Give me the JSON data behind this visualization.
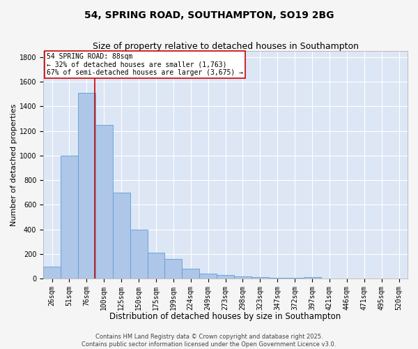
{
  "title_line1": "54, SPRING ROAD, SOUTHAMPTON, SO19 2BG",
  "title_line2": "Size of property relative to detached houses in Southampton",
  "xlabel": "Distribution of detached houses by size in Southampton",
  "ylabel": "Number of detached properties",
  "categories": [
    "26sqm",
    "51sqm",
    "76sqm",
    "100sqm",
    "125sqm",
    "150sqm",
    "175sqm",
    "199sqm",
    "224sqm",
    "249sqm",
    "273sqm",
    "298sqm",
    "323sqm",
    "347sqm",
    "372sqm",
    "397sqm",
    "421sqm",
    "446sqm",
    "471sqm",
    "495sqm",
    "520sqm"
  ],
  "values": [
    100,
    1000,
    1510,
    1250,
    700,
    400,
    210,
    160,
    80,
    40,
    30,
    20,
    12,
    8,
    5,
    10,
    0,
    0,
    0,
    0,
    0
  ],
  "bar_color": "#aec6e8",
  "bar_edge_color": "#5a9fd4",
  "background_color": "#dde6f5",
  "grid_color": "#ffffff",
  "vline_color": "#cc0000",
  "annotation_text": "54 SPRING ROAD: 88sqm\n← 32% of detached houses are smaller (1,763)\n67% of semi-detached houses are larger (3,675) →",
  "annotation_box_color": "#cc0000",
  "ylim": [
    0,
    1850
  ],
  "yticks": [
    0,
    200,
    400,
    600,
    800,
    1000,
    1200,
    1400,
    1600,
    1800
  ],
  "footnote": "Contains HM Land Registry data © Crown copyright and database right 2025.\nContains public sector information licensed under the Open Government Licence v3.0.",
  "title_fontsize": 10,
  "subtitle_fontsize": 9,
  "xlabel_fontsize": 8.5,
  "ylabel_fontsize": 8,
  "tick_fontsize": 7,
  "annotation_fontsize": 7,
  "footnote_fontsize": 6
}
